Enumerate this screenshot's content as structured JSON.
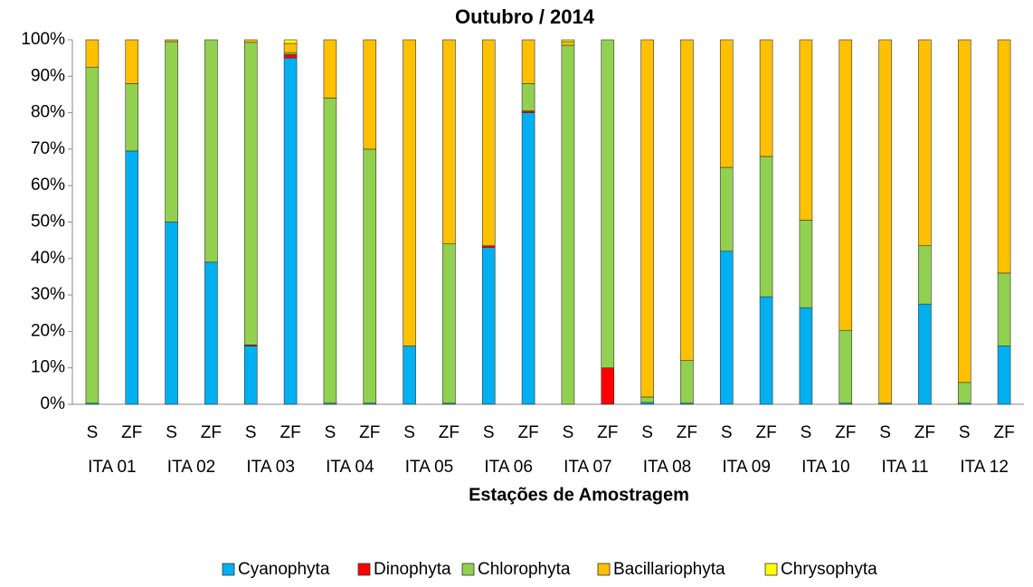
{
  "chart_data": {
    "type": "stacked_bar",
    "title": "Outubro / 2014",
    "x_label": "Estações de Amostragem",
    "categories": [
      "S",
      "ZF",
      "S",
      "ZF",
      "S",
      "ZF",
      "S",
      "ZF",
      "S",
      "ZF",
      "S",
      "ZF",
      "S",
      "ZF",
      "S",
      "ZF",
      "S",
      "ZF",
      "S",
      "ZF",
      "S",
      "ZF",
      "S",
      "ZF"
    ],
    "groups": [
      "ITA 01",
      "ITA 02",
      "ITA 03",
      "ITA 04",
      "ITA 05",
      "ITA 06",
      "ITA 07",
      "ITA 08",
      "ITA 09",
      "ITA 10",
      "ITA 11",
      "ITA 12"
    ],
    "series": [
      {
        "name": "Cyanophyta",
        "color": "#00b0f0",
        "values": [
          0.3,
          69.5,
          50,
          39,
          16,
          95,
          0.3,
          0.3,
          16,
          0.3,
          43,
          80,
          0,
          0,
          0.5,
          0.3,
          42,
          29.5,
          26.5,
          0.3,
          0.3,
          27.5,
          0.3,
          16
        ]
      },
      {
        "name": "Dinophyta",
        "color": "#ff0000",
        "values": [
          0,
          0,
          0,
          0,
          0.3,
          1,
          0,
          0,
          0,
          0,
          0.5,
          0.5,
          0,
          10,
          0,
          0,
          0,
          0,
          0,
          0,
          0,
          0,
          0,
          0
        ]
      },
      {
        "name": "Chlorophyta",
        "color": "#92d050",
        "values": [
          92.2,
          18.5,
          49.5,
          61,
          83,
          0.5,
          83.7,
          69.7,
          0,
          43.7,
          0,
          7.5,
          98.5,
          90,
          1.5,
          11.7,
          23,
          38.5,
          24,
          20,
          0,
          16,
          5.7,
          20
        ]
      },
      {
        "name": "Bacillariophyta",
        "color": "#ffc000",
        "values": [
          7.5,
          12,
          0.5,
          0,
          0.7,
          2.5,
          16,
          30,
          84,
          56,
          56.5,
          12,
          1,
          0,
          98,
          88,
          35,
          32,
          49.5,
          79.7,
          99.7,
          56.5,
          94,
          64
        ]
      },
      {
        "name": "Chrysophyta",
        "color": "#ffff00",
        "values": [
          0,
          0,
          0,
          0,
          0,
          1,
          0,
          0,
          0,
          0,
          0,
          0,
          0.5,
          0,
          0,
          0,
          0,
          0,
          0,
          0,
          0,
          0,
          0,
          0
        ]
      }
    ],
    "ylim": [
      0,
      100
    ],
    "yticks": [
      {
        "value": 0,
        "label": "0%"
      },
      {
        "value": 10,
        "label": "10%"
      },
      {
        "value": 20,
        "label": "20%"
      },
      {
        "value": 30,
        "label": "30%"
      },
      {
        "value": 40,
        "label": "40%"
      },
      {
        "value": 50,
        "label": "50%"
      },
      {
        "value": 60,
        "label": "60%"
      },
      {
        "value": 70,
        "label": "70%"
      },
      {
        "value": 80,
        "label": "80%"
      },
      {
        "value": 90,
        "label": "90%"
      },
      {
        "value": 100,
        "label": "100%"
      }
    ],
    "legend": "bottom"
  }
}
